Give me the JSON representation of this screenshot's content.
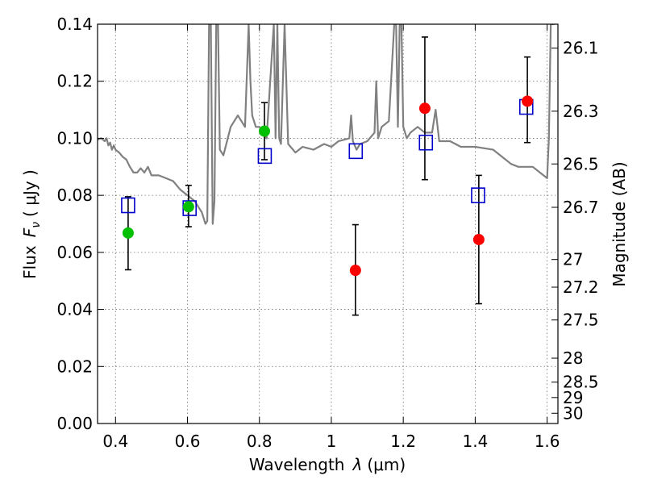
{
  "chart_data": {
    "type": "scatter",
    "title": "",
    "xlabel": "Wavelength",
    "xlabel_symbol": "λ",
    "xlabel_unit": "(μm)",
    "ylabel": "Flux",
    "ylabel_symbol": "F",
    "ylabel_sub": "ν",
    "ylabel_unit": "( μJy )",
    "y2label": "Magnitude (AB)",
    "xlim": [
      0.35,
      1.63
    ],
    "ylim": [
      0.0,
      0.14
    ],
    "grid": true,
    "x_ticks": [
      0.4,
      0.6,
      0.8,
      1.0,
      1.2,
      1.4,
      1.6
    ],
    "x_tick_labels": [
      "0.4",
      "0.6",
      "0.8",
      "1",
      "1.2",
      "1.4",
      "1.6"
    ],
    "y_ticks": [
      0.0,
      0.02,
      0.04,
      0.06,
      0.08,
      0.1,
      0.12,
      0.14
    ],
    "y_tick_labels": [
      "0.00",
      "0.02",
      "0.04",
      "0.06",
      "0.08",
      "0.10",
      "0.12",
      "0.14"
    ],
    "magnitude_ticks": [
      {
        "label": "26.1",
        "flux": 0.1316
      },
      {
        "label": "26.3",
        "flux": 0.1095
      },
      {
        "label": "26.5",
        "flux": 0.091
      },
      {
        "label": "26.7",
        "flux": 0.0758
      },
      {
        "label": "27",
        "flux": 0.0575
      },
      {
        "label": "27.2",
        "flux": 0.0478
      },
      {
        "label": "27.5",
        "flux": 0.0363
      },
      {
        "label": "28",
        "flux": 0.0229
      },
      {
        "label": "28.5",
        "flux": 0.0145
      },
      {
        "label": "29",
        "flux": 0.0091
      },
      {
        "label": "30",
        "flux": 0.0036
      }
    ],
    "colors": {
      "model": "#808080",
      "green_points": "#00c000",
      "red_points": "#ff0000",
      "model_squares": "#0000cc",
      "errorbar": "#000000"
    },
    "series": [
      {
        "name": "model spectrum",
        "kind": "line",
        "x": [
          0.35,
          0.36,
          0.37,
          0.375,
          0.38,
          0.385,
          0.39,
          0.395,
          0.4,
          0.41,
          0.42,
          0.43,
          0.44,
          0.45,
          0.46,
          0.47,
          0.48,
          0.49,
          0.5,
          0.52,
          0.54,
          0.56,
          0.58,
          0.6,
          0.62,
          0.63,
          0.64,
          0.645,
          0.65,
          0.655,
          0.66,
          0.665,
          0.67,
          0.675,
          0.68,
          0.685,
          0.69,
          0.7,
          0.72,
          0.74,
          0.76,
          0.77,
          0.775,
          0.78,
          0.79,
          0.8,
          0.82,
          0.84,
          0.845,
          0.85,
          0.855,
          0.86,
          0.87,
          0.88,
          0.9,
          0.92,
          0.95,
          0.98,
          1.0,
          1.02,
          1.05,
          1.055,
          1.06,
          1.07,
          1.08,
          1.1,
          1.12,
          1.125,
          1.13,
          1.14,
          1.16,
          1.175,
          1.18,
          1.185,
          1.19,
          1.195,
          1.2,
          1.21,
          1.22,
          1.24,
          1.26,
          1.28,
          1.29,
          1.3,
          1.33,
          1.36,
          1.4,
          1.45,
          1.48,
          1.5,
          1.52,
          1.54,
          1.56,
          1.58,
          1.6,
          1.605,
          1.61,
          1.62
        ],
        "y": [
          0.0995,
          0.1,
          0.099,
          0.1,
          0.0975,
          0.0985,
          0.096,
          0.0975,
          0.096,
          0.095,
          0.0935,
          0.0925,
          0.09,
          0.088,
          0.088,
          0.0895,
          0.088,
          0.09,
          0.087,
          0.087,
          0.086,
          0.085,
          0.082,
          0.08,
          0.078,
          0.076,
          0.074,
          0.072,
          0.07,
          0.071,
          0.14,
          0.14,
          0.07,
          0.078,
          0.14,
          0.14,
          0.096,
          0.094,
          0.104,
          0.108,
          0.104,
          0.14,
          0.12,
          0.108,
          0.104,
          0.104,
          0.1,
          0.14,
          0.1,
          0.14,
          0.1,
          0.098,
          0.14,
          0.098,
          0.095,
          0.097,
          0.096,
          0.098,
          0.097,
          0.099,
          0.1,
          0.108,
          0.099,
          0.096,
          0.098,
          0.099,
          0.102,
          0.12,
          0.1,
          0.104,
          0.106,
          0.14,
          0.14,
          0.104,
          0.14,
          0.14,
          0.104,
          0.1,
          0.102,
          0.104,
          0.102,
          0.102,
          0.11,
          0.099,
          0.099,
          0.097,
          0.097,
          0.096,
          0.093,
          0.091,
          0.09,
          0.09,
          0.09,
          0.088,
          0.086,
          0.1,
          0.14,
          0.14
        ]
      },
      {
        "name": "green photometry",
        "kind": "points",
        "points": [
          {
            "x": 0.435,
            "y": 0.0668,
            "err_low": 0.0539,
            "err_high": 0.0795
          },
          {
            "x": 0.603,
            "y": 0.076,
            "err_low": 0.069,
            "err_high": 0.0835
          },
          {
            "x": 0.814,
            "y": 0.1025,
            "err_low": 0.0925,
            "err_high": 0.1125
          }
        ]
      },
      {
        "name": "red photometry",
        "kind": "points",
        "points": [
          {
            "x": 1.067,
            "y": 0.0537,
            "err_low": 0.038,
            "err_high": 0.0697
          },
          {
            "x": 1.26,
            "y": 0.1105,
            "err_low": 0.0855,
            "err_high": 0.1355
          },
          {
            "x": 1.41,
            "y": 0.0645,
            "err_low": 0.042,
            "err_high": 0.087
          },
          {
            "x": 1.545,
            "y": 0.113,
            "err_low": 0.0985,
            "err_high": 0.1285
          }
        ]
      },
      {
        "name": "model band flux",
        "kind": "squares",
        "points": [
          {
            "x": 0.435,
            "y": 0.0765
          },
          {
            "x": 0.606,
            "y": 0.0755
          },
          {
            "x": 0.815,
            "y": 0.0938
          },
          {
            "x": 1.068,
            "y": 0.0955
          },
          {
            "x": 1.263,
            "y": 0.0985
          },
          {
            "x": 1.408,
            "y": 0.08
          },
          {
            "x": 1.542,
            "y": 0.111
          }
        ]
      }
    ]
  }
}
